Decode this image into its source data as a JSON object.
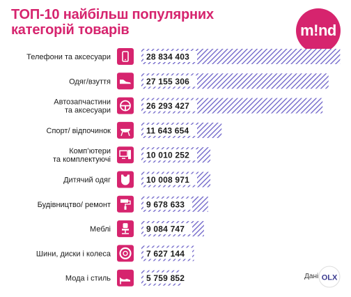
{
  "title_line1": "ТОП-10 найбільш популярних",
  "title_line2": "категорій товарів",
  "logo_text": "m!nd",
  "source_label": "Дані:",
  "source_logo_text": "OLX",
  "colors": {
    "title": "#d6246e",
    "accent": "#d6246e",
    "bar_hatch": "#6a5fc7",
    "text": "#1a1a1a"
  },
  "chart_data": {
    "type": "bar",
    "orientation": "horizontal",
    "xlim": [
      0,
      29000000
    ],
    "grid": false,
    "categories": [
      "Телефони та аксесуари",
      "Одяг/взуття",
      "Автозапчастини та аксесуари",
      "Спорт/ відпочинок",
      "Комп'ютери та комплектуючі",
      "Дитячий одяг",
      "Будівництво/ ремонт",
      "Меблі",
      "Шини, диски і колеса",
      "Мода і стиль"
    ],
    "labels_lines": [
      [
        "Телефони та аксесуари"
      ],
      [
        "Одяг/взуття"
      ],
      [
        "Автозапчастини",
        "та аксесуари"
      ],
      [
        "Спорт/ відпочинок"
      ],
      [
        "Комп’ютери",
        "та комплектуючі"
      ],
      [
        "Дитячий одяг"
      ],
      [
        "Будівництво/ ремонт"
      ],
      [
        "Меблі"
      ],
      [
        "Шини, диски і колеса"
      ],
      [
        "Мода і стиль"
      ]
    ],
    "values": [
      28834403,
      27155306,
      26293427,
      11643654,
      10010252,
      10008971,
      9678633,
      9084747,
      7627144,
      5759852
    ],
    "value_labels": [
      "28 834 403",
      "27 155 306",
      "26 293 427",
      "11 643 654",
      "10 010 252",
      "10 008 971",
      "9 678 633",
      "9 084 747",
      "7 627 144",
      "5 759 852"
    ],
    "icons": [
      "phone-icon",
      "sneaker-icon",
      "steering-wheel-icon",
      "grill-icon",
      "computer-icon",
      "baby-bib-icon",
      "paint-roller-icon",
      "office-chair-icon",
      "tire-icon",
      "high-heel-icon"
    ]
  }
}
